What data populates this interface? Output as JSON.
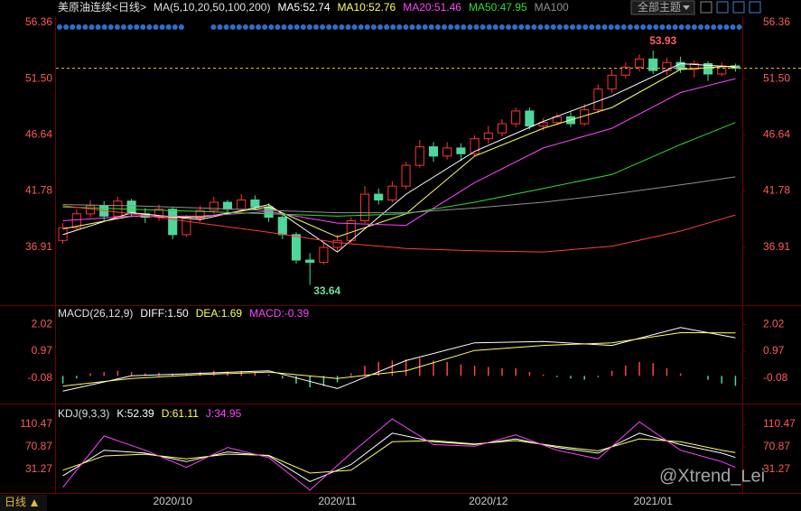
{
  "header": {
    "scope_button": "全部主题"
  },
  "footer": {
    "period_button": "日线"
  },
  "watermark": "@Xtrend_Lei",
  "chart_data": [
    {
      "type": "candlestick",
      "title": "美原油连续<日线>",
      "params": "MA(5,10,20,50,100,200)",
      "up_color": "#ff3232",
      "down_color": "#4fd69c",
      "ylim": [
        32.13,
        56.9
      ],
      "yticks": [
        36.91,
        41.78,
        46.64,
        {
          "value": 51.5,
          "label": "51.50"
        },
        56.36
      ],
      "xticks": [
        {
          "value": 8,
          "label": "2020/10"
        },
        {
          "value": 20,
          "label": "2020/11"
        },
        {
          "value": 31,
          "label": "2020/12"
        },
        {
          "value": 43,
          "label": "2021/01"
        }
      ],
      "ohlc": [
        [
          37.5,
          38.6,
          39.0,
          37.2
        ],
        [
          38.6,
          39.8,
          40.2,
          38.4
        ],
        [
          39.8,
          40.5,
          41.0,
          39.5
        ],
        [
          40.5,
          39.6,
          40.9,
          39.2
        ],
        [
          39.6,
          40.9,
          41.3,
          39.4
        ],
        [
          40.9,
          39.8,
          41.1,
          39.5
        ],
        [
          39.8,
          39.5,
          40.3,
          39.0
        ],
        [
          39.5,
          40.2,
          40.6,
          39.2
        ],
        [
          40.2,
          38.0,
          40.4,
          37.6
        ],
        [
          38.0,
          39.4,
          39.7,
          37.8
        ],
        [
          39.4,
          40.1,
          40.5,
          39.1
        ],
        [
          40.1,
          40.8,
          41.3,
          39.8
        ],
        [
          40.8,
          40.2,
          41.0,
          39.7
        ],
        [
          40.2,
          41.0,
          41.5,
          40.0
        ],
        [
          41.0,
          40.4,
          41.4,
          40.1
        ],
        [
          40.4,
          39.5,
          40.7,
          39.1
        ],
        [
          39.5,
          38.0,
          39.8,
          37.6
        ],
        [
          38.0,
          35.8,
          38.2,
          35.5
        ],
        [
          35.8,
          35.6,
          36.4,
          33.64
        ],
        [
          35.6,
          36.9,
          37.3,
          35.4
        ],
        [
          36.9,
          37.5,
          38.0,
          36.6
        ],
        [
          37.5,
          39.2,
          39.5,
          37.3
        ],
        [
          39.2,
          41.5,
          42.2,
          39.0
        ],
        [
          41.5,
          41.0,
          42.0,
          40.6
        ],
        [
          41.0,
          42.2,
          42.6,
          40.8
        ],
        [
          42.2,
          44.0,
          44.3,
          41.9
        ],
        [
          44.0,
          45.6,
          46.2,
          43.8
        ],
        [
          45.6,
          44.8,
          46.0,
          44.3
        ],
        [
          44.8,
          45.5,
          46.0,
          44.5
        ],
        [
          45.5,
          45.0,
          45.9,
          44.4
        ],
        [
          45.0,
          46.3,
          46.6,
          44.8
        ],
        [
          46.3,
          46.8,
          47.4,
          45.9
        ],
        [
          46.8,
          47.6,
          48.0,
          46.5
        ],
        [
          47.6,
          48.7,
          49.0,
          47.3
        ],
        [
          48.7,
          47.4,
          49.0,
          47.1
        ],
        [
          47.4,
          47.7,
          48.1,
          47.0
        ],
        [
          47.7,
          48.2,
          48.5,
          47.5
        ],
        [
          48.2,
          47.6,
          48.6,
          47.3
        ],
        [
          47.6,
          48.8,
          49.3,
          47.4
        ],
        [
          48.8,
          50.6,
          51.0,
          48.5
        ],
        [
          50.6,
          51.8,
          52.3,
          50.3
        ],
        [
          51.8,
          52.5,
          52.9,
          51.5
        ],
        [
          52.5,
          53.2,
          53.6,
          52.1
        ],
        [
          53.2,
          52.2,
          53.93,
          51.9
        ],
        [
          52.2,
          52.9,
          53.3,
          51.8
        ],
        [
          52.9,
          52.3,
          53.4,
          52.0
        ],
        [
          52.3,
          52.8,
          53.1,
          51.6
        ],
        [
          52.8,
          51.9,
          53.0,
          51.3
        ],
        [
          51.9,
          52.6,
          52.9,
          51.7
        ],
        [
          52.6,
          52.4,
          52.8,
          52.1
        ]
      ],
      "series": [
        {
          "name": "MA5:52.74",
          "color": "#ffffff",
          "x": [
            0,
            5,
            10,
            15,
            20,
            25,
            30,
            35,
            40,
            45,
            49
          ],
          "values": [
            38,
            39.9,
            39.3,
            40.6,
            36.5,
            41.5,
            45.2,
            47.8,
            50.0,
            52.8,
            52.5
          ]
        },
        {
          "name": "MA10:52.76",
          "color": "#ffff66",
          "x": [
            0,
            5,
            10,
            15,
            20,
            25,
            30,
            35,
            40,
            45,
            49
          ],
          "values": [
            38.5,
            39.6,
            39.5,
            40.4,
            37.8,
            39.8,
            44.8,
            47.2,
            49.0,
            52.3,
            52.6
          ]
        },
        {
          "name": "MA20:51.46",
          "color": "#ff44ff",
          "x": [
            0,
            5,
            10,
            15,
            20,
            25,
            30,
            35,
            40,
            45,
            49
          ],
          "values": [
            39.2,
            39.6,
            39.6,
            40.0,
            39.0,
            38.8,
            42.5,
            45.5,
            47.2,
            50.3,
            51.5
          ]
        },
        {
          "name": "MA50:47.95",
          "color": "#33dd33",
          "x": [
            0,
            5,
            10,
            15,
            20,
            25,
            30,
            35,
            40,
            45,
            49
          ],
          "values": [
            40.4,
            40.2,
            40.0,
            39.8,
            39.6,
            39.8,
            40.8,
            42.0,
            43.2,
            45.8,
            47.7
          ]
        },
        {
          "name": "MA100",
          "color": "#909090",
          "x": [
            0,
            5,
            10,
            15,
            20,
            25,
            30,
            35,
            40,
            45,
            49
          ],
          "values": [
            40.6,
            40.5,
            40.3,
            40.1,
            39.9,
            39.9,
            40.3,
            40.8,
            41.5,
            42.3,
            43.0
          ]
        },
        {
          "color": "#ff3b3b",
          "x": [
            0,
            5,
            10,
            15,
            20,
            25,
            30,
            35,
            40,
            45,
            49
          ],
          "values": [
            40.5,
            39.8,
            39.0,
            38.2,
            37.3,
            36.8,
            36.6,
            36.5,
            37.0,
            38.3,
            39.7
          ]
        }
      ]
    },
    {
      "type": "macd",
      "title": "MACD(26,12,9)",
      "histogram_name": "MACD:-0.39",
      "histogram_name_color": "#ff44ff",
      "up_color": "#ff4444",
      "down_color": "#4fd69c",
      "ylim": [
        -0.84,
        2.64
      ],
      "yticks": [
        -0.08,
        0.97,
        2.02
      ],
      "histogram": [
        -0.3,
        -0.1,
        0.1,
        0.15,
        0.2,
        0.15,
        0.1,
        0.12,
        0.05,
        0.1,
        0.15,
        0.2,
        0.18,
        0.2,
        0.15,
        0.05,
        -0.1,
        -0.3,
        -0.45,
        -0.4,
        -0.25,
        0.1,
        0.4,
        0.55,
        0.6,
        0.65,
        0.7,
        0.6,
        0.55,
        0.45,
        0.4,
        0.35,
        0.3,
        0.3,
        0.15,
        0.05,
        -0.05,
        -0.1,
        -0.15,
        -0.05,
        0.2,
        0.4,
        0.55,
        0.5,
        0.3,
        0.1,
        0.0,
        -0.15,
        -0.3,
        -0.39
      ],
      "series": [
        {
          "name": "DIFF:1.50",
          "color": "#ffffff",
          "x": [
            0,
            5,
            10,
            15,
            20,
            25,
            30,
            35,
            40,
            45,
            49
          ],
          "values": [
            -0.6,
            0.0,
            0.1,
            0.2,
            -0.5,
            0.6,
            1.3,
            1.35,
            1.2,
            1.9,
            1.5
          ]
        },
        {
          "name": "DEA:1.69",
          "color": "#ffff66",
          "x": [
            0,
            5,
            10,
            15,
            20,
            25,
            30,
            35,
            40,
            45,
            49
          ],
          "values": [
            -0.4,
            -0.1,
            0.05,
            0.15,
            -0.1,
            0.2,
            1.0,
            1.2,
            1.3,
            1.7,
            1.69
          ]
        }
      ]
    },
    {
      "type": "kdj",
      "title": "KDJ(9,3,3)",
      "ylim": [
        -8.3,
        139
      ],
      "yticks": [
        31.27,
        70.87,
        110.47
      ],
      "series": [
        {
          "name": "K:52.39",
          "color": "#ffffff",
          "x": [
            0,
            3,
            6,
            9,
            12,
            15,
            18,
            21,
            24,
            27,
            30,
            33,
            36,
            39,
            42,
            45,
            48,
            49
          ],
          "values": [
            20,
            65,
            60,
            45,
            62,
            55,
            10,
            40,
            95,
            80,
            75,
            85,
            70,
            60,
            95,
            75,
            60,
            52.39
          ]
        },
        {
          "name": "D:61.11",
          "color": "#ffff66",
          "x": [
            0,
            3,
            6,
            9,
            12,
            15,
            18,
            21,
            24,
            27,
            30,
            33,
            36,
            39,
            42,
            45,
            48,
            49
          ],
          "values": [
            30,
            55,
            58,
            50,
            58,
            56,
            25,
            30,
            80,
            82,
            76,
            82,
            72,
            64,
            85,
            80,
            65,
            61.11
          ]
        },
        {
          "name": "J:34.95",
          "color": "#ff44ff",
          "x": [
            0,
            3,
            6,
            9,
            12,
            15,
            18,
            21,
            24,
            27,
            30,
            33,
            36,
            39,
            42,
            45,
            48,
            49
          ],
          "values": [
            0,
            90,
            65,
            35,
            70,
            52,
            -5,
            60,
            120,
            75,
            72,
            92,
            65,
            50,
            115,
            65,
            45,
            34.95
          ]
        }
      ]
    }
  ]
}
